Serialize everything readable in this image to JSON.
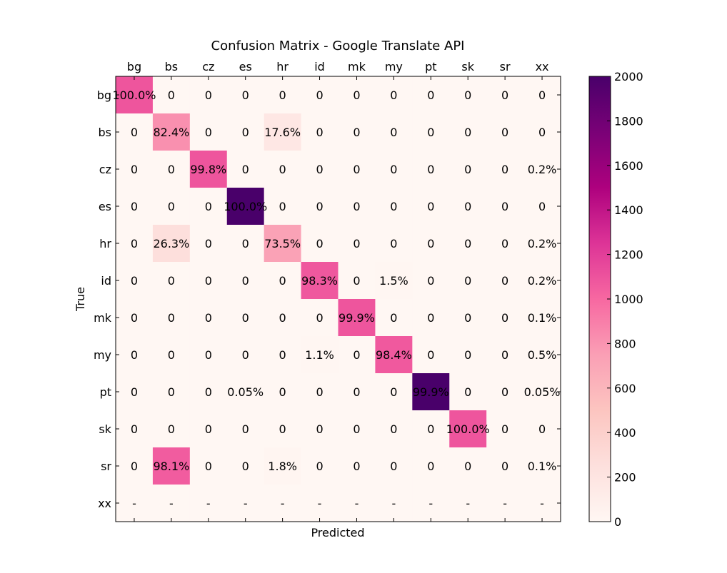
{
  "chart_data": {
    "type": "heatmap",
    "title": "Confusion Matrix - Google Translate API",
    "xlabel": "Predicted",
    "ylabel": "True",
    "x_categories": [
      "bg",
      "bs",
      "cz",
      "es",
      "hr",
      "id",
      "mk",
      "my",
      "pt",
      "sk",
      "sr",
      "xx"
    ],
    "y_categories": [
      "bg",
      "bs",
      "cz",
      "es",
      "hr",
      "id",
      "mk",
      "my",
      "pt",
      "sk",
      "sr",
      "xx"
    ],
    "values": [
      [
        1090,
        0,
        0,
        0,
        0,
        0,
        0,
        0,
        0,
        0,
        0,
        0
      ],
      [
        0,
        820,
        0,
        0,
        175,
        0,
        0,
        0,
        0,
        0,
        0,
        0
      ],
      [
        0,
        0,
        1090,
        0,
        0,
        0,
        0,
        0,
        0,
        0,
        0,
        2
      ],
      [
        0,
        0,
        0,
        2000,
        0,
        0,
        0,
        0,
        0,
        0,
        0,
        0
      ],
      [
        0,
        262,
        0,
        0,
        732,
        0,
        0,
        0,
        0,
        0,
        0,
        2
      ],
      [
        0,
        0,
        0,
        0,
        0,
        1075,
        0,
        16,
        0,
        0,
        0,
        2
      ],
      [
        0,
        0,
        0,
        0,
        0,
        0,
        1090,
        0,
        0,
        0,
        0,
        1
      ],
      [
        0,
        0,
        0,
        0,
        0,
        12,
        0,
        1070,
        0,
        0,
        0,
        5
      ],
      [
        0,
        0,
        0,
        1,
        0,
        0,
        0,
        0,
        2000,
        0,
        0,
        1
      ],
      [
        0,
        0,
        0,
        0,
        0,
        0,
        0,
        0,
        0,
        1090,
        0,
        0
      ],
      [
        0,
        1060,
        0,
        0,
        19,
        0,
        0,
        0,
        0,
        0,
        0,
        1
      ],
      [
        0,
        0,
        0,
        0,
        0,
        0,
        0,
        0,
        0,
        0,
        0,
        0
      ]
    ],
    "cell_labels": [
      [
        "100.0%",
        "0",
        "0",
        "0",
        "0",
        "0",
        "0",
        "0",
        "0",
        "0",
        "0",
        "0"
      ],
      [
        "0",
        "82.4%",
        "0",
        "0",
        "17.6%",
        "0",
        "0",
        "0",
        "0",
        "0",
        "0",
        "0"
      ],
      [
        "0",
        "0",
        "99.8%",
        "0",
        "0",
        "0",
        "0",
        "0",
        "0",
        "0",
        "0",
        "0.2%"
      ],
      [
        "0",
        "0",
        "0",
        "100.0%",
        "0",
        "0",
        "0",
        "0",
        "0",
        "0",
        "0",
        "0"
      ],
      [
        "0",
        "26.3%",
        "0",
        "0",
        "73.5%",
        "0",
        "0",
        "0",
        "0",
        "0",
        "0",
        "0.2%"
      ],
      [
        "0",
        "0",
        "0",
        "0",
        "0",
        "98.3%",
        "0",
        "1.5%",
        "0",
        "0",
        "0",
        "0.2%"
      ],
      [
        "0",
        "0",
        "0",
        "0",
        "0",
        "0",
        "99.9%",
        "0",
        "0",
        "0",
        "0",
        "0.1%"
      ],
      [
        "0",
        "0",
        "0",
        "0",
        "0",
        "1.1%",
        "0",
        "98.4%",
        "0",
        "0",
        "0",
        "0.5%"
      ],
      [
        "0",
        "0",
        "0",
        "0.05%",
        "0",
        "0",
        "0",
        "0",
        "99.9%",
        "0",
        "0",
        "0.05%"
      ],
      [
        "0",
        "0",
        "0",
        "0",
        "0",
        "0",
        "0",
        "0",
        "0",
        "100.0%",
        "0",
        "0"
      ],
      [
        "0",
        "98.1%",
        "0",
        "0",
        "1.8%",
        "0",
        "0",
        "0",
        "0",
        "0",
        "0",
        "0.1%"
      ],
      [
        "-",
        "-",
        "-",
        "-",
        "-",
        "-",
        "-",
        "-",
        "-",
        "-",
        "-",
        "-"
      ]
    ],
    "colorbar": {
      "min": 0,
      "max": 2000,
      "ticks": [
        0,
        200,
        400,
        600,
        800,
        1000,
        1200,
        1400,
        1600,
        1800,
        2000
      ],
      "tick_labels": [
        "0",
        "200",
        "400",
        "600",
        "800",
        "1000",
        "1200",
        "1400",
        "1600",
        "1800",
        "2000"
      ],
      "colormap": "RdPu",
      "stops": [
        "#fff7f3",
        "#fde0dd",
        "#fcc5c0",
        "#fa9fb5",
        "#f768a1",
        "#dd3497",
        "#ae017e",
        "#7a0177",
        "#49006a"
      ]
    },
    "x_ticks_position": "top",
    "grid": false
  }
}
